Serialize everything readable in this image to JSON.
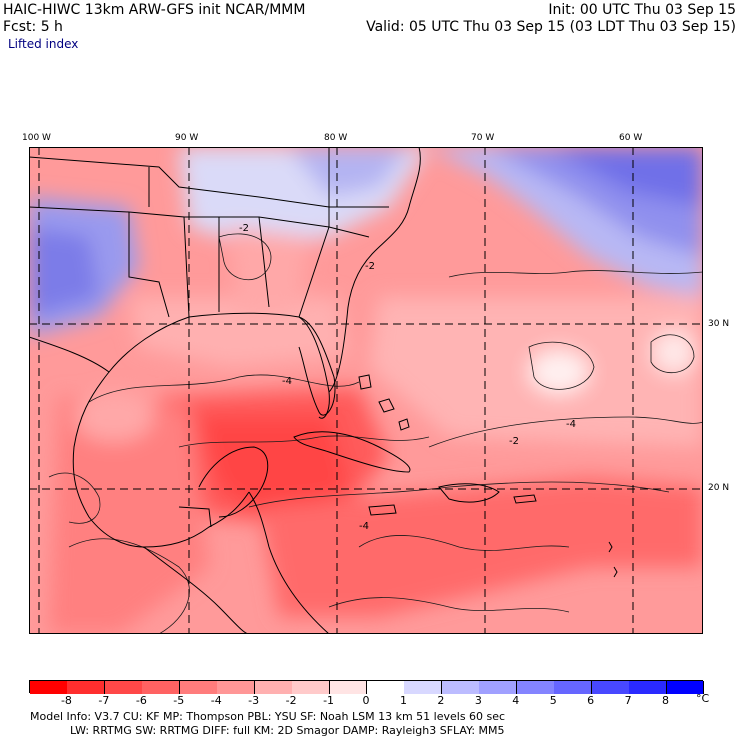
{
  "header": {
    "line1_left": "HAIC-HIWC 13km ARW-GFS init   NCAR/MMM",
    "line1_right": "Init: 00 UTC Thu 03 Sep 15",
    "line2_left": "Fcst:     5 h",
    "line2_right": "Valid: 05 UTC Thu 03 Sep 15 (03 LDT Thu 03 Sep 15)",
    "field_label": "Lifted index"
  },
  "axes": {
    "top_ticks": [
      "100 W",
      "90 W",
      "80 W",
      "70 W",
      "60 W"
    ],
    "right_ticks": [
      "30 N",
      "20 N"
    ]
  },
  "map": {
    "field": "Lifted index",
    "units": "°C",
    "contour_labels": [
      "-2",
      "-4",
      "-4",
      "-2",
      "-4",
      "-2"
    ]
  },
  "colorbar": {
    "labels": [
      "-8",
      "-7",
      "-6",
      "-5",
      "-4",
      "-3",
      "-2",
      "-1",
      "0",
      "1",
      "2",
      "3",
      "4",
      "5",
      "6",
      "7",
      "8"
    ],
    "unit": "°C",
    "colors": [
      "#ff0000",
      "#ff2e2e",
      "#ff4848",
      "#ff6262",
      "#ff7c7c",
      "#ff9696",
      "#ffb0b0",
      "#ffcaca",
      "#ffe4e4",
      "#ffffff",
      "#d8d8ff",
      "#bcbcff",
      "#a0a0ff",
      "#8484ff",
      "#6666ff",
      "#4848ff",
      "#2a2aff",
      "#0000ff"
    ]
  },
  "footer": {
    "line1": "Model Info: V3.7      CU: KF       MP: Thompson     PBL: YSU       SF: Noah LSM     13 km    51 levels   60 sec",
    "line2": "LW: RRTMG     SW: RRTMG   DIFF: full    KM: 2D Smagor DAMP: Rayleigh3  SFLAY: MM5"
  }
}
